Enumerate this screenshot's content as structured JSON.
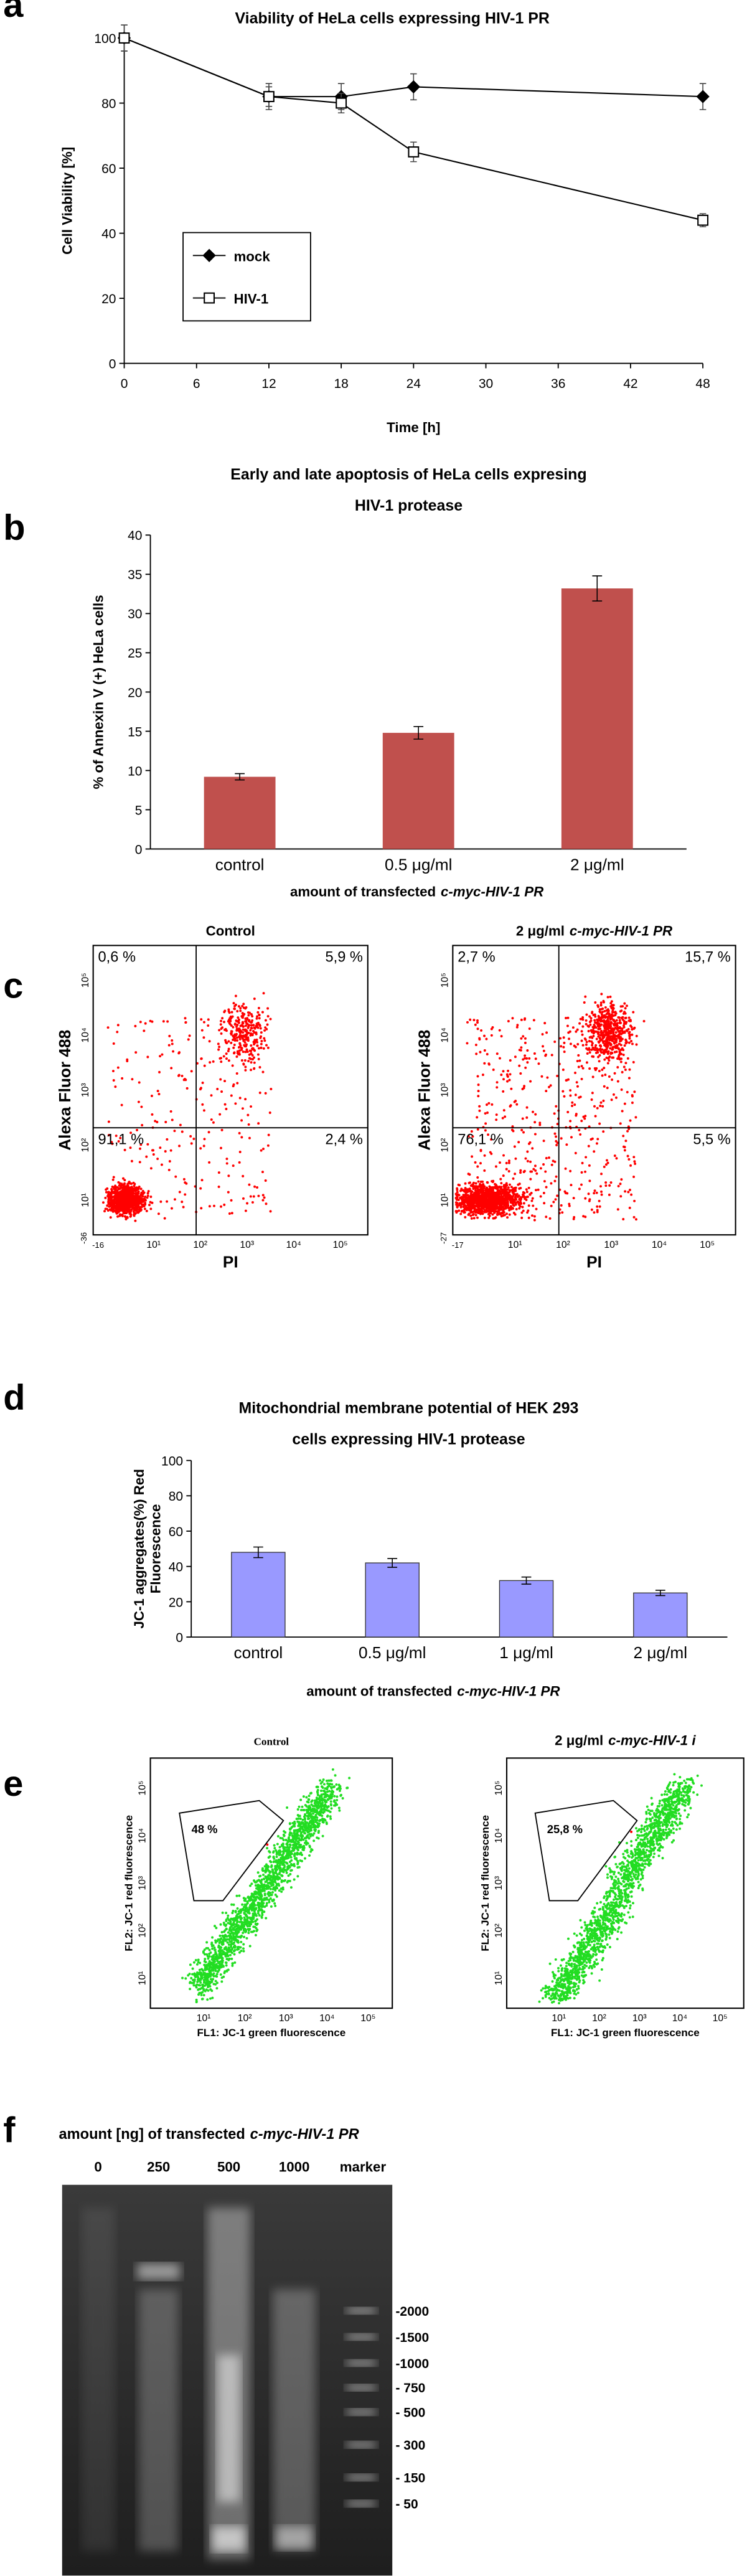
{
  "panel_labels": [
    "a",
    "b",
    "c",
    "d",
    "e",
    "f"
  ],
  "chart_data": [
    {
      "type": "line",
      "title": "Viability of HeLa cells expressing HIV-1 PR",
      "xlabel": "Time [h]",
      "ylabel": "Cell Viability [%]",
      "x": [
        0,
        12,
        18,
        24,
        48
      ],
      "series": [
        {
          "name": "mock",
          "color": "#000000",
          "marker": "diamond",
          "values": [
            100,
            82,
            82,
            85,
            82
          ],
          "errors": [
            4,
            4,
            4,
            4,
            4
          ]
        },
        {
          "name": "HIV-1",
          "color": "#000000",
          "marker": "open-square",
          "values": [
            100,
            82,
            80,
            65,
            44
          ],
          "errors": [
            4,
            3,
            3,
            3,
            2
          ]
        }
      ],
      "xlim": [
        0,
        48
      ],
      "ylim": [
        0,
        100
      ],
      "xticks": [
        0,
        6,
        12,
        18,
        24,
        30,
        36,
        42,
        48
      ],
      "yticks": [
        0,
        20,
        40,
        60,
        80,
        100
      ]
    },
    {
      "type": "bar",
      "title": [
        "Early and late apoptosis of HeLa cells expresing",
        "HIV-1 protease"
      ],
      "ylabel": [
        "% of Annexin V (+) HeLa cells"
      ],
      "xlabel": [
        "amount of transfected",
        "c-myc-HIV-1 PR"
      ],
      "categories": [
        "control",
        "0.5 μg/ml",
        "2 μg/ml"
      ],
      "values": [
        9.2,
        14.8,
        33.2
      ],
      "errors": [
        0.4,
        0.8,
        1.6
      ],
      "color": "#c0504d",
      "ylim": [
        0,
        40
      ],
      "yticks": [
        0,
        5,
        10,
        15,
        20,
        25,
        30,
        35,
        40
      ]
    },
    {
      "type": "bar",
      "title": [
        "Mitochondrial membrane potential of HEK 293",
        "cells expressing HIV-1 protease"
      ],
      "ylabel": [
        "JC-1 aggregates(%) Red",
        "Fluorescence"
      ],
      "xlabel": [
        "amount of transfected",
        "c-myc-HIV-1 PR"
      ],
      "categories": [
        "control",
        "0.5 μg/ml",
        "1 μg/ml",
        "2 μg/ml"
      ],
      "values": [
        48,
        42,
        32,
        25
      ],
      "errors": [
        3,
        2.5,
        2,
        1.5
      ],
      "color": "#9999ff",
      "ylim": [
        0,
        100
      ],
      "yticks": [
        0,
        20,
        40,
        60,
        80,
        100
      ]
    }
  ],
  "flow_c": {
    "ylabel": "Alexa Fluor 488",
    "xlabel": "PI",
    "tick_labels": [
      "10¹",
      "10²",
      "10³",
      "10⁴",
      "10⁵"
    ],
    "plots": [
      {
        "title": [
          "Control"
        ],
        "quadrants": [
          "0,6 %",
          "5,9 %",
          "91,1 %",
          "2,4 %"
        ],
        "axis_min": [
          "-36",
          "-16"
        ]
      },
      {
        "title": [
          "2 μg/ml",
          "c-myc-HIV-1 PR"
        ],
        "quadrants": [
          "2,7 %",
          "15,7 %",
          "76,1 %",
          "5,5 %"
        ],
        "axis_min": [
          "-27",
          "-17"
        ]
      }
    ]
  },
  "flow_e": {
    "ylabel": "FL2: JC-1 red fluorescence",
    "xlabel": "FL1: JC-1 green fluorescence",
    "tick_labels": [
      "10¹",
      "10²",
      "10³",
      "10⁴",
      "10⁵"
    ],
    "plots": [
      {
        "title": [
          "Control"
        ],
        "gate": "48 %"
      },
      {
        "title": [
          "2 μg/ml",
          "c-myc-HIV-1 i"
        ],
        "gate": "25,8 %"
      }
    ]
  },
  "gel_f": {
    "title": [
      "amount [ng] of transfected",
      "c-myc-HIV-1 PR"
    ],
    "lanes": [
      "0",
      "250",
      "500",
      "1000",
      "marker"
    ],
    "ladder": [
      "-2000",
      "-1500",
      "-1000",
      "- 750",
      "- 500",
      "- 300",
      "- 150",
      "- 50"
    ]
  }
}
